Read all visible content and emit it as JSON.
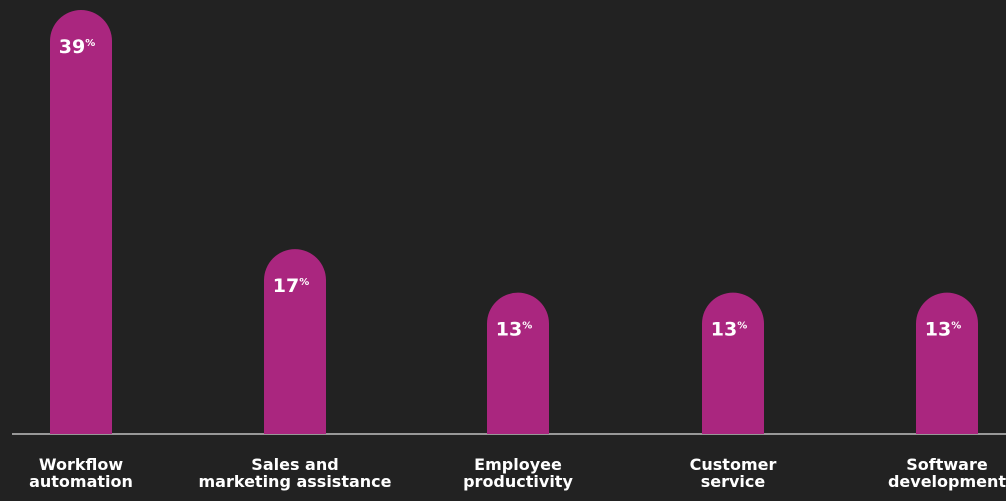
{
  "chart_data": {
    "type": "bar",
    "categories": [
      "Workflow\nautomation",
      "Sales and\nmarketing assistance",
      "Employee\nproductivity",
      "Customer\nservice",
      "Software\ndevelopment"
    ],
    "values": [
      39,
      17,
      13,
      13,
      13
    ],
    "value_suffix": "%",
    "title": "",
    "xlabel": "",
    "ylabel": "",
    "ylim": [
      0,
      39
    ],
    "grid": false,
    "bar_color": "#AA267F",
    "background_color": "#222222",
    "baseline_color": "#BFBFBF",
    "label_color": "#FFFFFF"
  }
}
